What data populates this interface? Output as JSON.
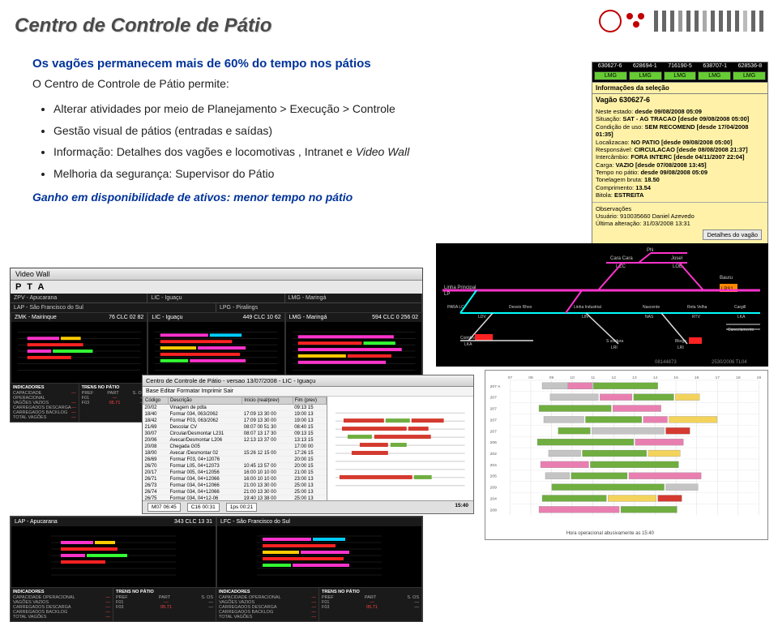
{
  "title": "Centro de Controle de Pátio",
  "intro": "Os vagões permanecem mais de 60% do tempo nos pátios",
  "sub_intro": "O Centro de Controle de  Pátio permite:",
  "bullets": [
    "Alterar atividades por meio de Planejamento  > Execução > Controle",
    "Gestão visual de pátios (entradas e saídas)",
    "Informação: Detalhes dos vagões e locomotivas , Intranet e Video Wall",
    "Melhoria da segurança: Supervisor do Pátio"
  ],
  "bullet_italic_index": 2,
  "bullet_italic_phrase": "Video Wall",
  "gain": "Ganho em disponibilidade de ativos: menor tempo no pátio",
  "info_panel": {
    "header_ids": [
      "630627-6",
      "628694-1",
      "716190-5",
      "638707-1",
      "628536-8"
    ],
    "header_btns": [
      "LMG",
      "LMG",
      "LMG",
      "LMG",
      "LMG"
    ],
    "section_title": "Informações da seleção",
    "wagon_label": "Vagão 630627-6",
    "lines": [
      {
        "k": "Neste estado:",
        "v": "desde 09/08/2008 05:09"
      },
      {
        "k": "Situação:",
        "v": "SAT - AG TRACAO [desde 09/08/2008 05:00]"
      },
      {
        "k": "Condição de uso:",
        "v": "SEM RECOMEND [desde 17/04/2008 01:35]"
      },
      {
        "k": "Localizacao:",
        "v": "NO PATIO [desde 09/08/2008 05:00]"
      },
      {
        "k": "Responsável:",
        "v": "CIRCULACAO [desde 08/08/2008 21:37]"
      },
      {
        "k": "Intercâmbio:",
        "v": "FORA INTERC [desde 04/11/2007 22:04]"
      },
      {
        "k": "Carga:",
        "v": "VAZIO [desde 07/08/2008 13:45]"
      },
      {
        "k": "Tempo no pátio:",
        "v": "desde 09/08/2008 05:09"
      },
      {
        "k": "Tonelagem bruta:",
        "v": "18.50"
      },
      {
        "k": "Comprimento:",
        "v": "13.54"
      },
      {
        "k": "Bitola:",
        "v": "ESTREITA"
      }
    ],
    "obs_title": "Observações",
    "obs_user": "Usuário: 910035660 Daniel Azevedo",
    "obs_alt": "Última alteração: 31/03/2008 13:31",
    "button": "Detalhes do vagão"
  },
  "track": {
    "labels_top": [
      "PN"
    ],
    "labels": [
      "Cara Cara",
      "Josel",
      "LCC",
      "LOE",
      "Linha Principal",
      "LP",
      "Bauru",
      "LPS1",
      "PARA LC",
      "Desvio Rhex",
      "Linha Industrial",
      "Nascente",
      "Reta Velha",
      "Cargill",
      "LDV",
      "LIN",
      "NAS",
      "RTV",
      "LKA",
      "Coimbra",
      "LKA",
      "S soidura",
      "LRI",
      "Bkvge",
      "LRI",
      "Cancelamento"
    ],
    "line_colors": {
      "pink": "#ff33cc",
      "cyan": "#00ffff",
      "white": "#dddddd",
      "red": "#ff2222",
      "orange": "#ff8800"
    },
    "footer": [
      "08144873",
      "2530/2006  TL04"
    ]
  },
  "videowall": {
    "window_title": "Video Wall",
    "pta": "P T A",
    "top_tabs": [
      "ZPV - Apucarana",
      "LIC - Iguaçu",
      "LMG - Maringá"
    ],
    "sub_tabs": [
      "LAP - São Francisco do Sul",
      "LPG - Piralings"
    ],
    "cells": [
      {
        "title": "ZMK - Mairinque",
        "code": "76 CLC 02 82"
      },
      {
        "title": "LIC - Iguaçu",
        "code": "449 CLC 10 62"
      },
      {
        "title": "LMG - Maringá",
        "code": "594 CLC 0 256 02"
      }
    ],
    "indicators_header": "INDICADORES",
    "indicator_labels": [
      "CAPACIDADE OPERACIONAL",
      "VAGÕES VAZIOS",
      "CARREGADOS DESCARGA",
      "CARREGADOS BACKLOG",
      "TOTAL VAGÕES"
    ],
    "trens_header": "TRENS NO PÁTIO",
    "trens_cols": [
      "PREF",
      "PART",
      "S. OS"
    ],
    "bottom_cells": [
      {
        "title": "LAP - Apucarana",
        "code": "343 CLC 13 31"
      },
      {
        "title": "LFC - São Francisco do Sul",
        "code": ""
      }
    ],
    "colors": {
      "bg": "#000000",
      "pink": "#ff33cc",
      "red": "#ff2222",
      "yellow": "#ffcc00",
      "cyan": "#00ccff",
      "green": "#33ff33"
    }
  },
  "table_window": {
    "title": "Centro de Controle de Pátio - versao 13/07/2008 - LIC - Iguaçu",
    "menu": "Base  Editar  Formatar  Imprimir  Sair",
    "columns": [
      "Código",
      "Descrição",
      "Início (real/prev)",
      "Fim (prev)"
    ],
    "rows": [
      [
        "20/02",
        "Vinagem de pdta",
        "",
        "09:13 15"
      ],
      [
        "18/40",
        "Formar 034, 063/2062",
        "17:09 13 30 00",
        "19:00 13"
      ],
      [
        "18/42",
        "Formar F03, 063/2062",
        "17:09 13 30 00",
        "19:00 13"
      ],
      [
        "21/69",
        "Descolar CV",
        "08:07 00 51 30",
        "08:40 15"
      ],
      [
        "30/07",
        "Circular/Desmontar L231",
        "08:07 13 17 30",
        "09:13 15"
      ],
      [
        "20/06",
        "Avecar/Desmontar L206",
        "12:13 13 37 00",
        "13:13 15"
      ],
      [
        "20/08",
        "Chegada G05",
        "",
        "17:00 00"
      ],
      [
        "18/00",
        "Avecar /Desmontar 02",
        "15:26 12 15 00",
        "17:26 15"
      ],
      [
        "26/69",
        "Formar F03, 04+12076",
        "",
        "20:00 15"
      ],
      [
        "26/70",
        "Formar L05, 04+12073",
        "10:45 13 57 00",
        "20:00 15"
      ],
      [
        "20/17",
        "Formar 005, 04+12056",
        "16:00 10 10 00",
        "21:00 15"
      ],
      [
        "26/71",
        "Formar 034, 04+12066",
        "16:00 10 10 00",
        "23:00 13"
      ],
      [
        "26/73",
        "Formar 034, 04+12066",
        "21:00 13 30 00",
        "25:00 13"
      ],
      [
        "26/74",
        "Formar 034, 04+12066",
        "21:00 13 30 00",
        "25:00 13"
      ],
      [
        "26/75",
        "Formar 034, 04+12-06",
        "19:40 13 38 00",
        "25:00 13"
      ]
    ],
    "status_labels": [
      "M07  06:45",
      "C16  00:31",
      "1ps  00:21"
    ],
    "clock": "15:40",
    "right_colors": {
      "red": "#d43a2f",
      "green": "#6fae3f",
      "gray": "#cccccc"
    }
  },
  "gantt": {
    "row_labels": [
      "207 A",
      "207",
      "207",
      "207",
      "207",
      "206",
      "202",
      "204",
      "205",
      "209",
      "204",
      "208"
    ],
    "time_ticks": [
      "07",
      "08",
      "09",
      "10",
      "11",
      "12",
      "13",
      "14",
      "15",
      "16",
      "17",
      "18",
      "19"
    ],
    "bar_colors": {
      "green": "#6fae3f",
      "pink": "#e97fb0",
      "yellow": "#f3d35b",
      "gray": "#c4c4c4",
      "red": "#d43a2f"
    },
    "footer": "Hora operacional abusivamente as 15:40"
  },
  "deco": {
    "accent": "#c00000",
    "bar_color": "#666666"
  }
}
